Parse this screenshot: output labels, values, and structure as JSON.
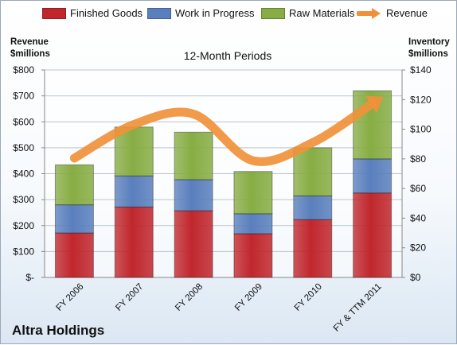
{
  "chart_data": {
    "type": "bar",
    "subtitle": "12-Month Periods",
    "company": "Altra Holdings",
    "categories": [
      "FY 2006",
      "FY 2007",
      "FY 2008",
      "FY 2009",
      "FY 2010",
      "FY & TTM 2011"
    ],
    "left_axis": {
      "title_line1": "Revenue",
      "title_line2": "$millions",
      "range": [
        0,
        800
      ],
      "ticks": [
        "$-",
        "$100",
        "$200",
        "$300",
        "$400",
        "$500",
        "$600",
        "$700",
        "$800"
      ]
    },
    "right_axis": {
      "title_line1": "Inventory",
      "title_line2": "$millions",
      "range": [
        0,
        140
      ],
      "ticks": [
        "$0",
        "$20",
        "$40",
        "$60",
        "$80",
        "$100",
        "$120",
        "$140"
      ]
    },
    "series": [
      {
        "name": "Finished Goods",
        "axis": "right",
        "kind": "stacked-bar",
        "color": "#c0272d",
        "values": [
          30,
          47.5,
          45,
          29.5,
          39,
          57
        ]
      },
      {
        "name": "Work in Progress",
        "axis": "right",
        "kind": "stacked-bar",
        "color": "#5a7fbd",
        "values": [
          19,
          21,
          21,
          13.5,
          16,
          23
        ]
      },
      {
        "name": "Raw Materials",
        "axis": "right",
        "kind": "stacked-bar",
        "color": "#87ad44",
        "values": [
          27,
          33,
          32,
          28.5,
          32.5,
          46
        ]
      },
      {
        "name": "Revenue",
        "axis": "left",
        "kind": "line",
        "color": "#f0913a",
        "values": [
          460,
          590,
          630,
          450,
          520,
          670
        ]
      }
    ],
    "grid": true,
    "legend_position": "top"
  }
}
